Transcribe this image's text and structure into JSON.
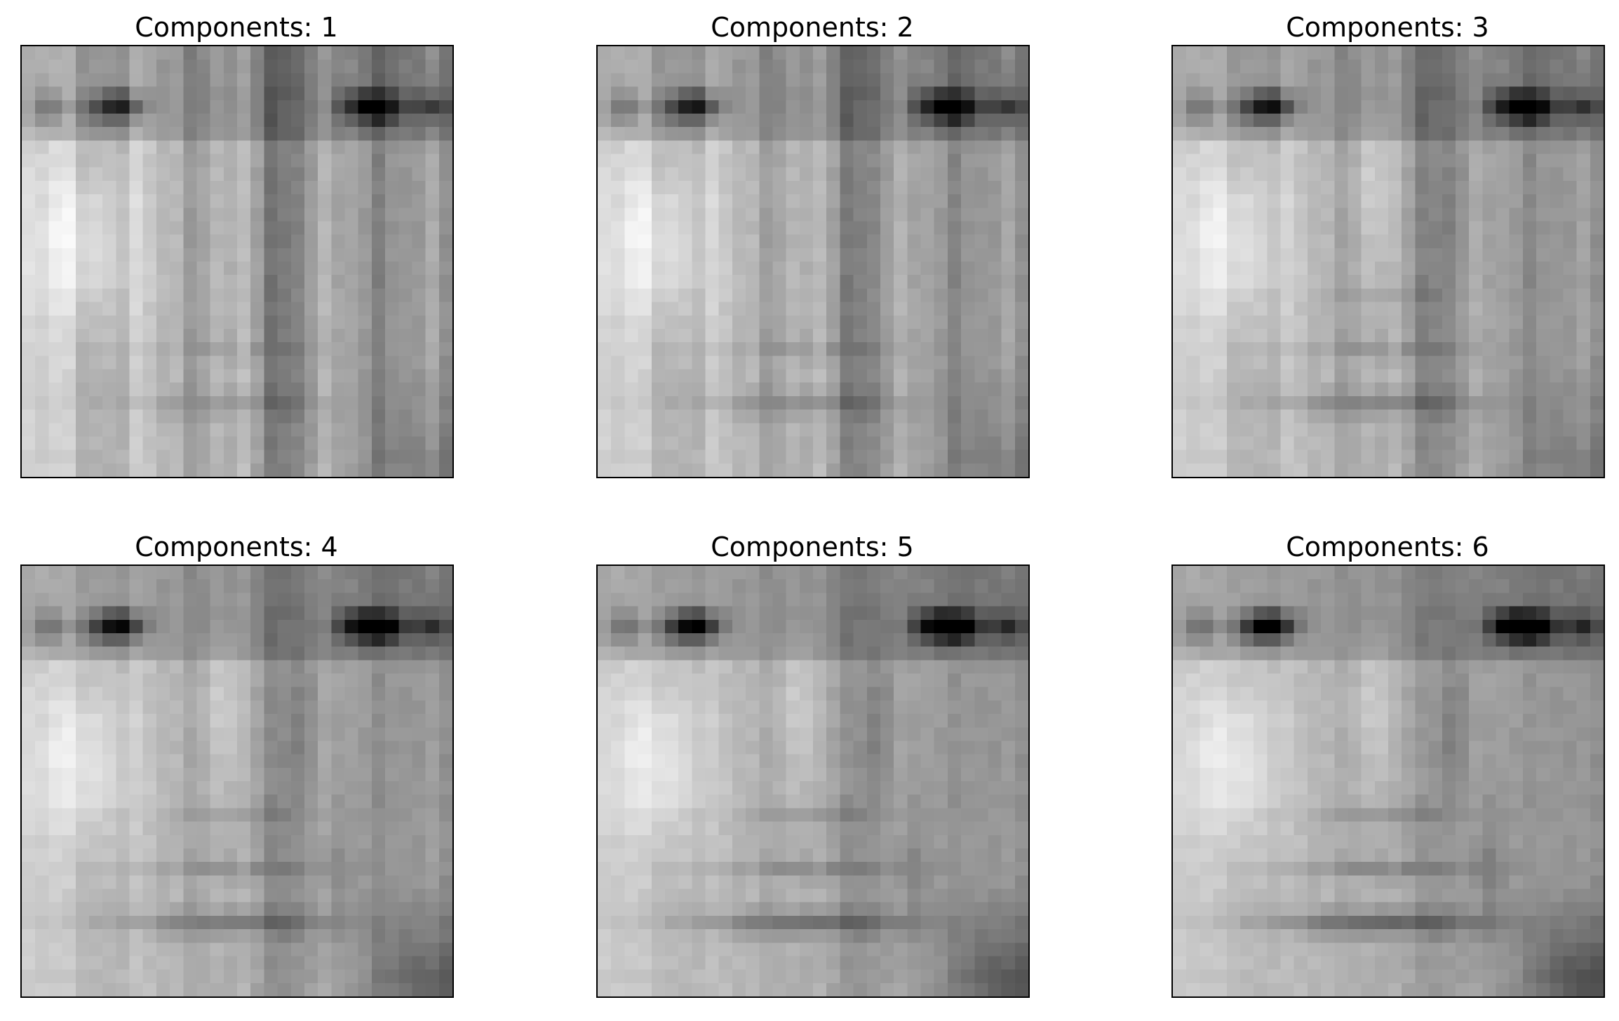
{
  "figure": {
    "panels": [
      {
        "title": "Components: 1",
        "components": 1
      },
      {
        "title": "Components: 2",
        "components": 2
      },
      {
        "title": "Components: 3",
        "components": 3
      },
      {
        "title": "Components: 4",
        "components": 4
      },
      {
        "title": "Components: 5",
        "components": 5
      },
      {
        "title": "Components: 6",
        "components": 6
      }
    ]
  },
  "colors": {
    "background": "#ffffff",
    "frame": "#000000",
    "colormap": "gray"
  }
}
